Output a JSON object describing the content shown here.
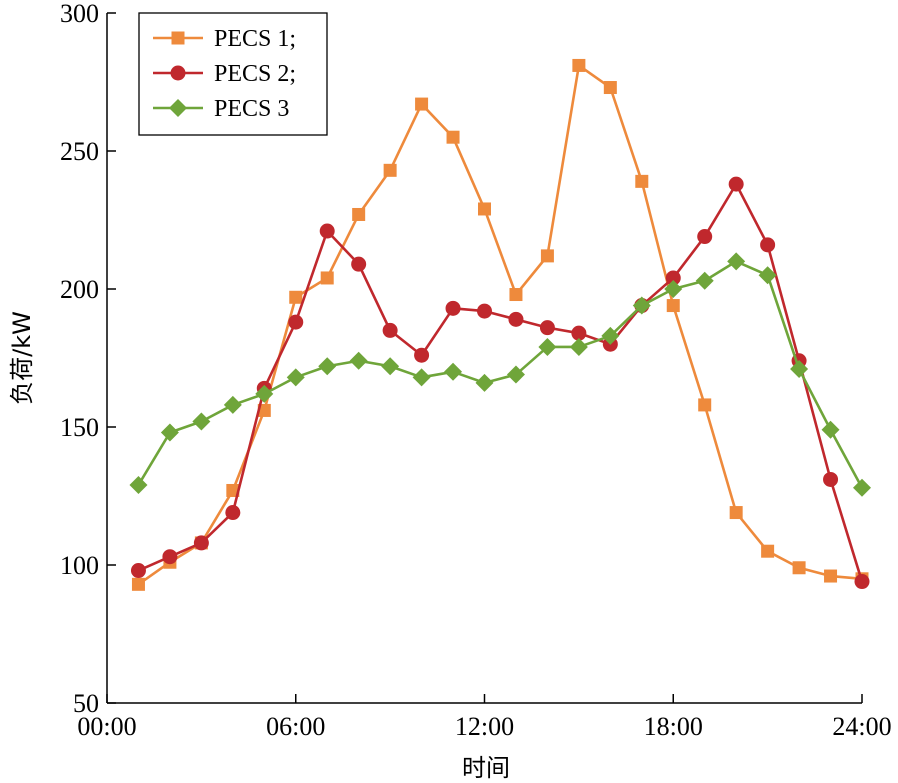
{
  "chart_data": {
    "type": "line",
    "xlabel": "时间",
    "ylabel": "负荷/kW",
    "xlim": [
      0,
      24
    ],
    "ylim": [
      50,
      300
    ],
    "xticks": [
      0,
      6,
      12,
      18,
      24
    ],
    "xtick_labels": [
      "00:00",
      "06:00",
      "12:00",
      "18:00",
      "24:00"
    ],
    "yticks": [
      50,
      100,
      150,
      200,
      250,
      300
    ],
    "ytick_labels": [
      "50",
      "100",
      "150",
      "200",
      "250",
      "300"
    ],
    "grid": false,
    "legend_position": "top-left",
    "x": [
      1,
      2,
      3,
      4,
      5,
      6,
      7,
      8,
      9,
      10,
      11,
      12,
      13,
      14,
      15,
      16,
      17,
      18,
      19,
      20,
      21,
      22,
      23,
      24
    ],
    "series": [
      {
        "name": "PECS 1;",
        "color": "#EE8A3C",
        "marker": "square",
        "values": [
          93,
          101,
          108,
          127,
          156,
          197,
          204,
          227,
          243,
          267,
          255,
          229,
          198,
          212,
          281,
          273,
          239,
          194,
          158,
          119,
          105,
          99,
          96,
          95
        ]
      },
      {
        "name": "PECS 2;",
        "color": "#C0282D",
        "marker": "circle",
        "values": [
          98,
          103,
          108,
          119,
          164,
          188,
          221,
          209,
          185,
          176,
          193,
          192,
          189,
          186,
          184,
          180,
          194,
          204,
          219,
          238,
          216,
          174,
          131,
          94
        ]
      },
      {
        "name": "PECS 3",
        "color": "#6FA53A",
        "marker": "diamond",
        "values": [
          129,
          148,
          152,
          158,
          162,
          168,
          172,
          174,
          172,
          168,
          170,
          166,
          169,
          179,
          179,
          183,
          194,
          200,
          203,
          210,
          205,
          171,
          149,
          128
        ]
      }
    ]
  }
}
